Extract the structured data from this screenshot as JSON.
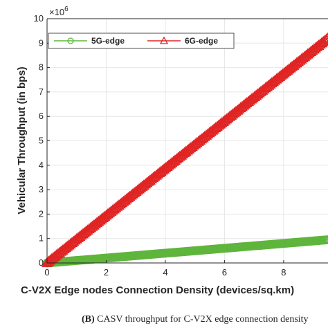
{
  "chart_data": {
    "type": "line",
    "xlabel": "C-V2X Edge nodes Connection Density (devices/sq.km)",
    "ylabel": "Vehicular Throughput (in bps)",
    "y_multiplier_label": "×10",
    "y_multiplier_exponent": "6",
    "xlim": [
      0,
      9.5
    ],
    "ylim": [
      0,
      10
    ],
    "xticks": [
      "0",
      "2",
      "4",
      "6",
      "8"
    ],
    "yticks": [
      "0",
      "1",
      "2",
      "3",
      "4",
      "5",
      "6",
      "7",
      "8",
      "9",
      "10"
    ],
    "legend_placement": "top-left",
    "grid": true,
    "series": [
      {
        "name": "5G-edge",
        "marker": "circle",
        "color": "#5fb53c",
        "x": [
          0,
          9.5
        ],
        "y": [
          0,
          0.95
        ]
      },
      {
        "name": "6G-edge",
        "marker": "triangle",
        "color": "#e02424",
        "x": [
          0,
          9.5
        ],
        "y": [
          0,
          9.2
        ]
      }
    ]
  },
  "caption": {
    "label": "(B)",
    "text": " CASV throughput for C-V2X edge connection density"
  }
}
